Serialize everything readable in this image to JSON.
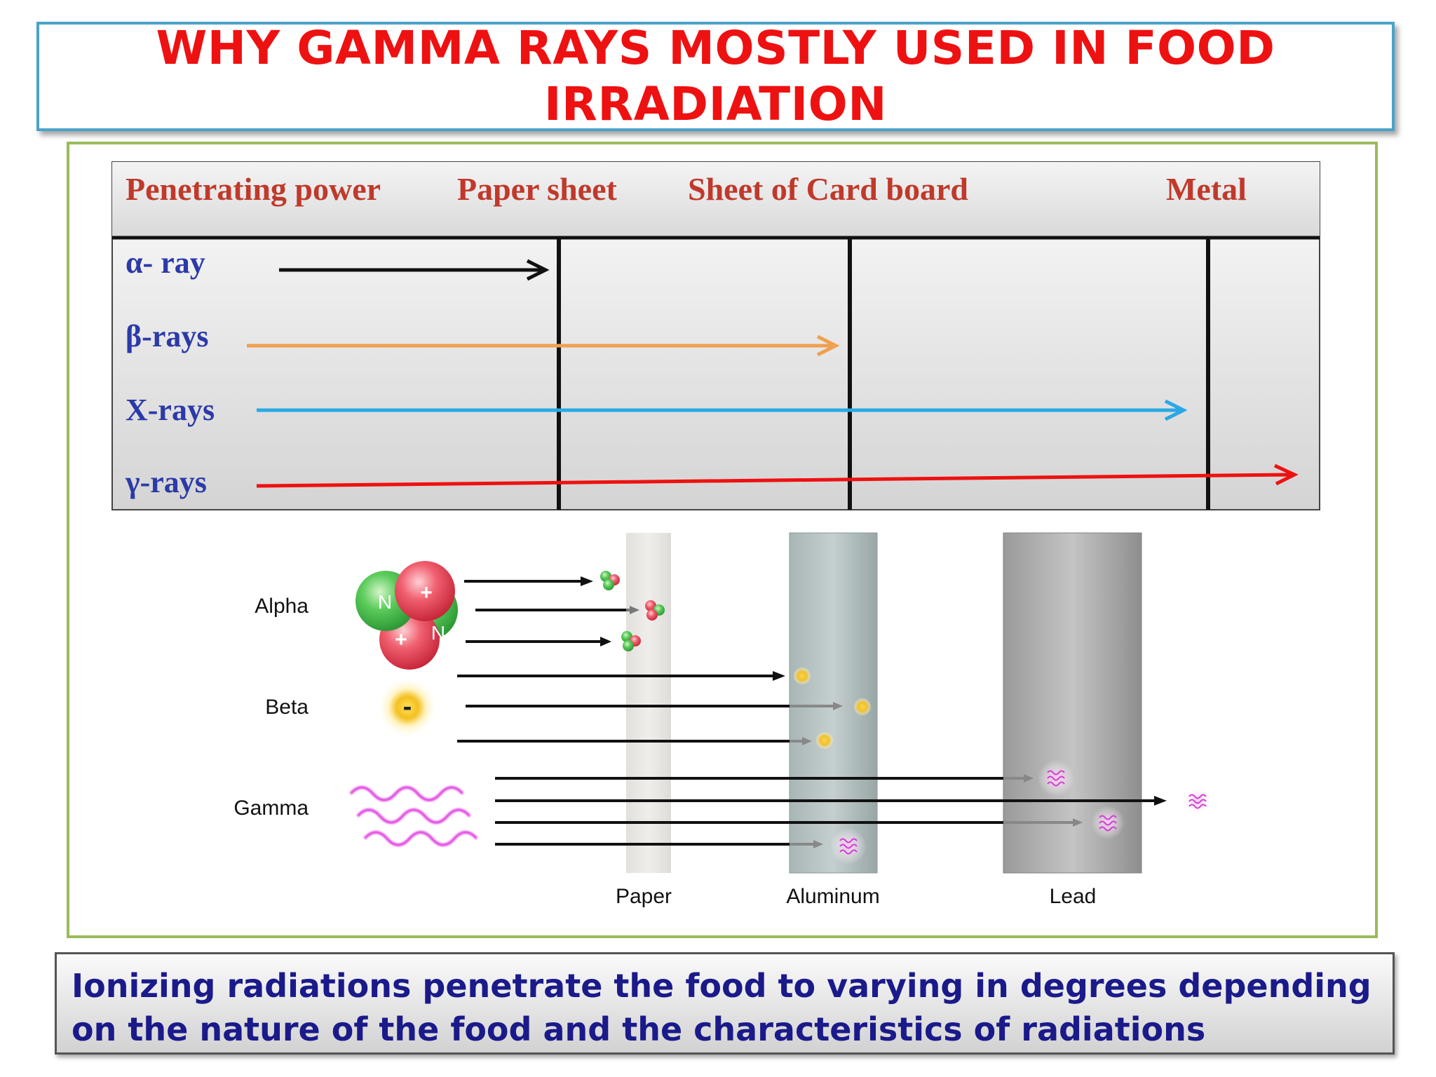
{
  "title": {
    "line1": "WHY GAMMA RAYS MOSTLY USED IN FOOD",
    "line2": "IRRADIATION"
  },
  "table": {
    "headers": {
      "penetrating_power": "Penetrating power",
      "paper_sheet": "Paper  sheet",
      "card_board": "Sheet  of Card board",
      "metal": "Metal"
    },
    "rows": [
      {
        "label": "α- ray",
        "reaches": "Paper sheet",
        "color": "#111111"
      },
      {
        "label": "β-rays",
        "reaches": "Sheet of Card board",
        "color": "#f0a050"
      },
      {
        "label": "X-rays",
        "reaches": "Metal",
        "color": "#2aa8e6"
      },
      {
        "label": "γ-rays",
        "reaches": "beyond Metal",
        "color": "#ee1111"
      }
    ]
  },
  "diagram": {
    "radiation_labels": {
      "alpha": "Alpha",
      "beta": "Beta",
      "gamma": "Gamma"
    },
    "alpha_particle": {
      "neutron_symbol": "N",
      "proton_symbol": "+"
    },
    "beta_particle": {
      "symbol": "-"
    },
    "barriers": {
      "paper": "Paper",
      "aluminum": "Aluminum",
      "lead": "Lead"
    }
  },
  "caption": {
    "line1": "Ionizing radiations penetrate the food to varying in degrees depending",
    "line2": "on the nature of the food and the characteristics of radiations"
  },
  "colors": {
    "title": "#ee1111",
    "title_border": "#4aa3c8",
    "frame_border": "#9bbb59",
    "table_header_text": "#c0392b",
    "table_row_text": "#2b3aa8",
    "caption_text": "#1a1a8a"
  }
}
